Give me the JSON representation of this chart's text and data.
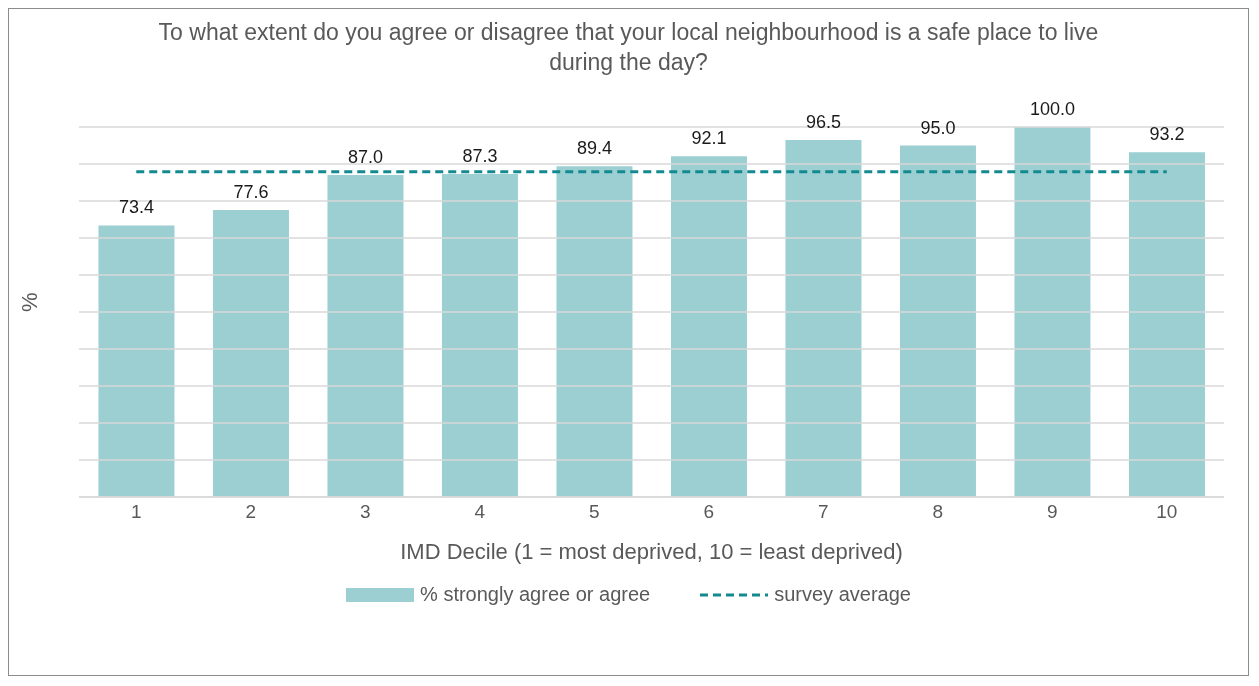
{
  "chart_data": {
    "type": "bar",
    "title": "To what extent do you agree or disagree that your local neighbourhood is a safe place to live during the day?",
    "xlabel": "IMD Decile (1 = most deprived, 10 = least deprived)",
    "ylabel": "%",
    "categories": [
      "1",
      "2",
      "3",
      "4",
      "5",
      "6",
      "7",
      "8",
      "9",
      "10"
    ],
    "series": [
      {
        "name": "% strongly agree or agree",
        "color": "#9ccfd2",
        "values": [
          73.4,
          77.6,
          87.0,
          87.3,
          89.4,
          92.1,
          96.5,
          95.0,
          100.0,
          93.2
        ],
        "value_labels": [
          "73.4",
          "77.6",
          "87.0",
          "87.3",
          "89.4",
          "92.1",
          "96.5",
          "95.0",
          "100.0",
          "93.2"
        ]
      },
      {
        "type": "line",
        "name": "survey average",
        "color": "#138a8f",
        "line_style": "dashed",
        "marker": "none",
        "values": [
          87.9,
          87.9,
          87.9,
          87.9,
          87.9,
          87.9,
          87.9,
          87.9,
          87.9,
          87.9
        ]
      }
    ],
    "ylim": [
      0,
      100
    ],
    "yticks": [
      {
        "value": 0,
        "label": null
      },
      {
        "value": 10,
        "label": null
      },
      {
        "value": 20,
        "label": null
      },
      {
        "value": 30,
        "label": null
      },
      {
        "value": 40,
        "label": null
      },
      {
        "value": 50,
        "label": null
      },
      {
        "value": 60,
        "label": null
      },
      {
        "value": 70,
        "label": null
      },
      {
        "value": 80,
        "label": null
      },
      {
        "value": 90,
        "label": null
      },
      {
        "value": 100,
        "label": null
      }
    ],
    "tick_labels": "x",
    "grid": "y",
    "legend": "bottom"
  }
}
